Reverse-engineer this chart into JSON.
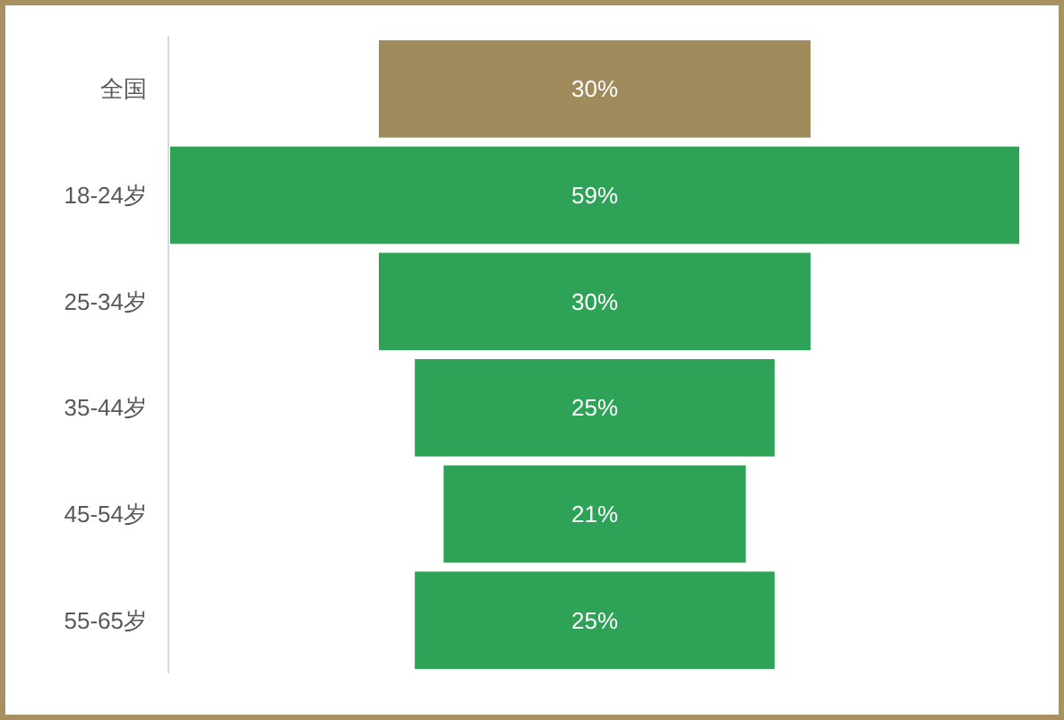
{
  "chart_data": {
    "type": "other",
    "categories": [
      "全国",
      "18-24岁",
      "25-34岁",
      "35-44岁",
      "45-54岁",
      "55-65岁"
    ],
    "values": [
      30,
      59,
      30,
      25,
      21,
      25
    ],
    "colors": [
      "#9f8b5b",
      "#2ea357",
      "#2ea357",
      "#2ea357",
      "#2ea357",
      "#2ea357"
    ],
    "value_labels": [
      "30%",
      "59%",
      "30%",
      "25%",
      "21%",
      "25%"
    ]
  }
}
